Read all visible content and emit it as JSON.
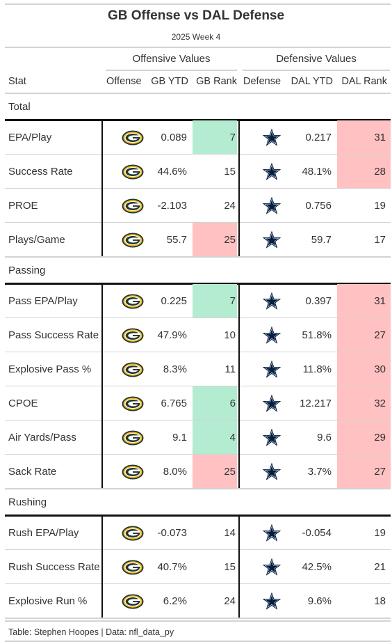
{
  "title": "GB Offense vs DAL Defense",
  "subtitle": "2025 Week 4",
  "spanners": {
    "offense": "Offensive Values",
    "defense": "Defensive Values"
  },
  "columns": {
    "stat": "Stat",
    "offense": "Offense",
    "gb_ytd": "GB YTD",
    "gb_rank": "GB Rank",
    "defense": "Defense",
    "dal_ytd": "DAL YTD",
    "dal_rank": "DAL Rank"
  },
  "icons": {
    "offense": "packers-g-logo-icon",
    "defense": "cowboys-star-logo-icon"
  },
  "colors": {
    "good": "#b3ecd0",
    "bad": "#ffc1c1",
    "packers_green": "#203731",
    "packers_gold": "#ffb612",
    "cowboys_navy": "#041e42",
    "cowboys_silver": "#869397"
  },
  "groups": [
    {
      "name": "Total",
      "rows": [
        {
          "stat": "EPA/Play",
          "gb_ytd": "0.089",
          "gb_rank": "7",
          "gb_rank_color": "good",
          "dal_ytd": "0.217",
          "dal_rank": "31",
          "dal_rank_color": "bad"
        },
        {
          "stat": "Success Rate",
          "gb_ytd": "44.6%",
          "gb_rank": "15",
          "gb_rank_color": "",
          "dal_ytd": "48.1%",
          "dal_rank": "28",
          "dal_rank_color": "bad"
        },
        {
          "stat": "PROE",
          "gb_ytd": "-2.103",
          "gb_rank": "24",
          "gb_rank_color": "",
          "dal_ytd": "0.756",
          "dal_rank": "19",
          "dal_rank_color": ""
        },
        {
          "stat": "Plays/Game",
          "gb_ytd": "55.7",
          "gb_rank": "25",
          "gb_rank_color": "bad",
          "dal_ytd": "59.7",
          "dal_rank": "17",
          "dal_rank_color": ""
        }
      ]
    },
    {
      "name": "Passing",
      "rows": [
        {
          "stat": "Pass EPA/Play",
          "gb_ytd": "0.225",
          "gb_rank": "7",
          "gb_rank_color": "good",
          "dal_ytd": "0.397",
          "dal_rank": "31",
          "dal_rank_color": "bad"
        },
        {
          "stat": "Pass Success Rate",
          "gb_ytd": "47.9%",
          "gb_rank": "10",
          "gb_rank_color": "",
          "dal_ytd": "51.8%",
          "dal_rank": "27",
          "dal_rank_color": "bad"
        },
        {
          "stat": "Explosive Pass %",
          "gb_ytd": "8.3%",
          "gb_rank": "11",
          "gb_rank_color": "",
          "dal_ytd": "11.8%",
          "dal_rank": "30",
          "dal_rank_color": "bad"
        },
        {
          "stat": "CPOE",
          "gb_ytd": "6.765",
          "gb_rank": "6",
          "gb_rank_color": "good",
          "dal_ytd": "12.217",
          "dal_rank": "32",
          "dal_rank_color": "bad"
        },
        {
          "stat": "Air Yards/Pass",
          "gb_ytd": "9.1",
          "gb_rank": "4",
          "gb_rank_color": "good",
          "dal_ytd": "9.6",
          "dal_rank": "29",
          "dal_rank_color": "bad"
        },
        {
          "stat": "Sack Rate",
          "gb_ytd": "8.0%",
          "gb_rank": "25",
          "gb_rank_color": "bad",
          "dal_ytd": "3.7%",
          "dal_rank": "27",
          "dal_rank_color": "bad"
        }
      ]
    },
    {
      "name": "Rushing",
      "rows": [
        {
          "stat": "Rush EPA/Play",
          "gb_ytd": "-0.073",
          "gb_rank": "14",
          "gb_rank_color": "",
          "dal_ytd": "-0.054",
          "dal_rank": "19",
          "dal_rank_color": ""
        },
        {
          "stat": "Rush Success Rate",
          "gb_ytd": "40.7%",
          "gb_rank": "15",
          "gb_rank_color": "",
          "dal_ytd": "42.5%",
          "dal_rank": "21",
          "dal_rank_color": ""
        },
        {
          "stat": "Explosive Run %",
          "gb_ytd": "6.2%",
          "gb_rank": "24",
          "gb_rank_color": "",
          "dal_ytd": "9.6%",
          "dal_rank": "18",
          "dal_rank_color": ""
        }
      ]
    }
  ],
  "footer": "Table: Stephen Hoopes | Data: nfl_data_py"
}
